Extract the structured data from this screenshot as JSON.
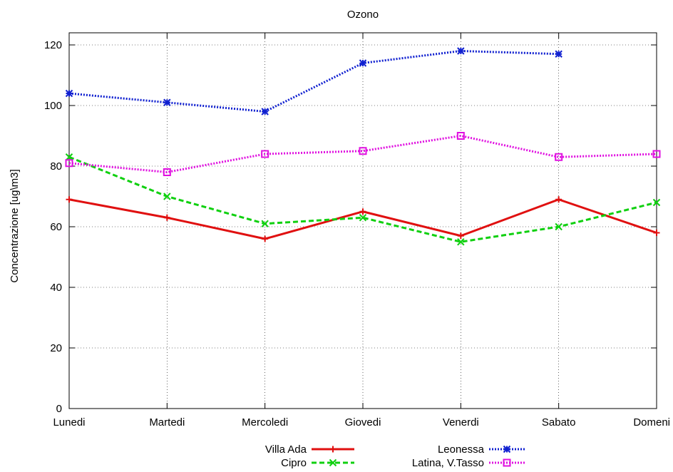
{
  "chart_data": {
    "type": "line",
    "title": "Ozono",
    "xlabel": "",
    "ylabel": "Concentrazione [ug\\m3]",
    "categories": [
      "Lunedi",
      "Martedi",
      "Mercoledi",
      "Giovedi",
      "Venerdi",
      "Sabato",
      "Domeni"
    ],
    "yticks": [
      "0",
      "20",
      "40",
      "60",
      "80",
      "100",
      "120"
    ],
    "ylim": [
      0,
      120
    ],
    "grid": true,
    "legend_position": "bottom",
    "series": [
      {
        "name": "Villa Ada",
        "color": "#e01010",
        "dash": "solid",
        "marker": "plus",
        "values": [
          69,
          63,
          56,
          65,
          57,
          69,
          58
        ]
      },
      {
        "name": "Cipro",
        "color": "#10d010",
        "dash": "dashed",
        "marker": "cross",
        "values": [
          83,
          70,
          61,
          63,
          55,
          60,
          68
        ]
      },
      {
        "name": "Leonessa",
        "color": "#1020d0",
        "dash": "dotted",
        "marker": "star",
        "values": [
          104,
          101,
          98,
          114,
          118,
          117,
          null
        ]
      },
      {
        "name": "Latina, V.Tasso",
        "color": "#e010e0",
        "dash": "dotted",
        "marker": "box",
        "values": [
          81,
          78,
          84,
          85,
          90,
          83,
          84
        ]
      }
    ]
  }
}
